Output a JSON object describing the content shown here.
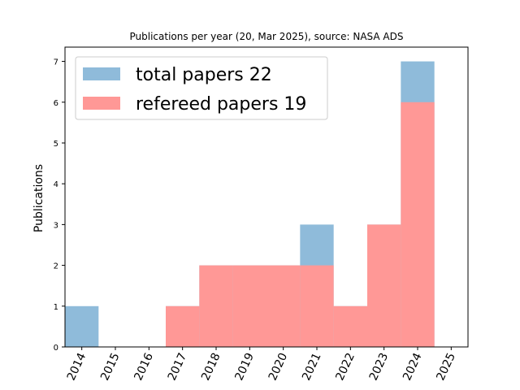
{
  "chart_data": {
    "type": "bar",
    "title": "Publications per year (20, Mar 2025), source: NASA ADS",
    "xlabel": "",
    "ylabel": "Publications",
    "categories": [
      "2014",
      "2015",
      "2016",
      "2017",
      "2018",
      "2019",
      "2020",
      "2021",
      "2022",
      "2023",
      "2024",
      "2025"
    ],
    "ylim": [
      0,
      7.35
    ],
    "yticks": [
      "0",
      "1",
      "2",
      "3",
      "4",
      "5",
      "6",
      "7"
    ],
    "grid": false,
    "legend_position": "upper-left",
    "series": [
      {
        "name": "total papers 22",
        "color": "#8fbbda",
        "values": [
          1,
          0,
          0,
          1,
          2,
          2,
          2,
          3,
          1,
          3,
          7,
          0
        ]
      },
      {
        "name": "refereed papers 19",
        "color": "#ff9896",
        "values": [
          0,
          0,
          0,
          1,
          2,
          2,
          2,
          2,
          1,
          3,
          6,
          0
        ]
      }
    ]
  }
}
